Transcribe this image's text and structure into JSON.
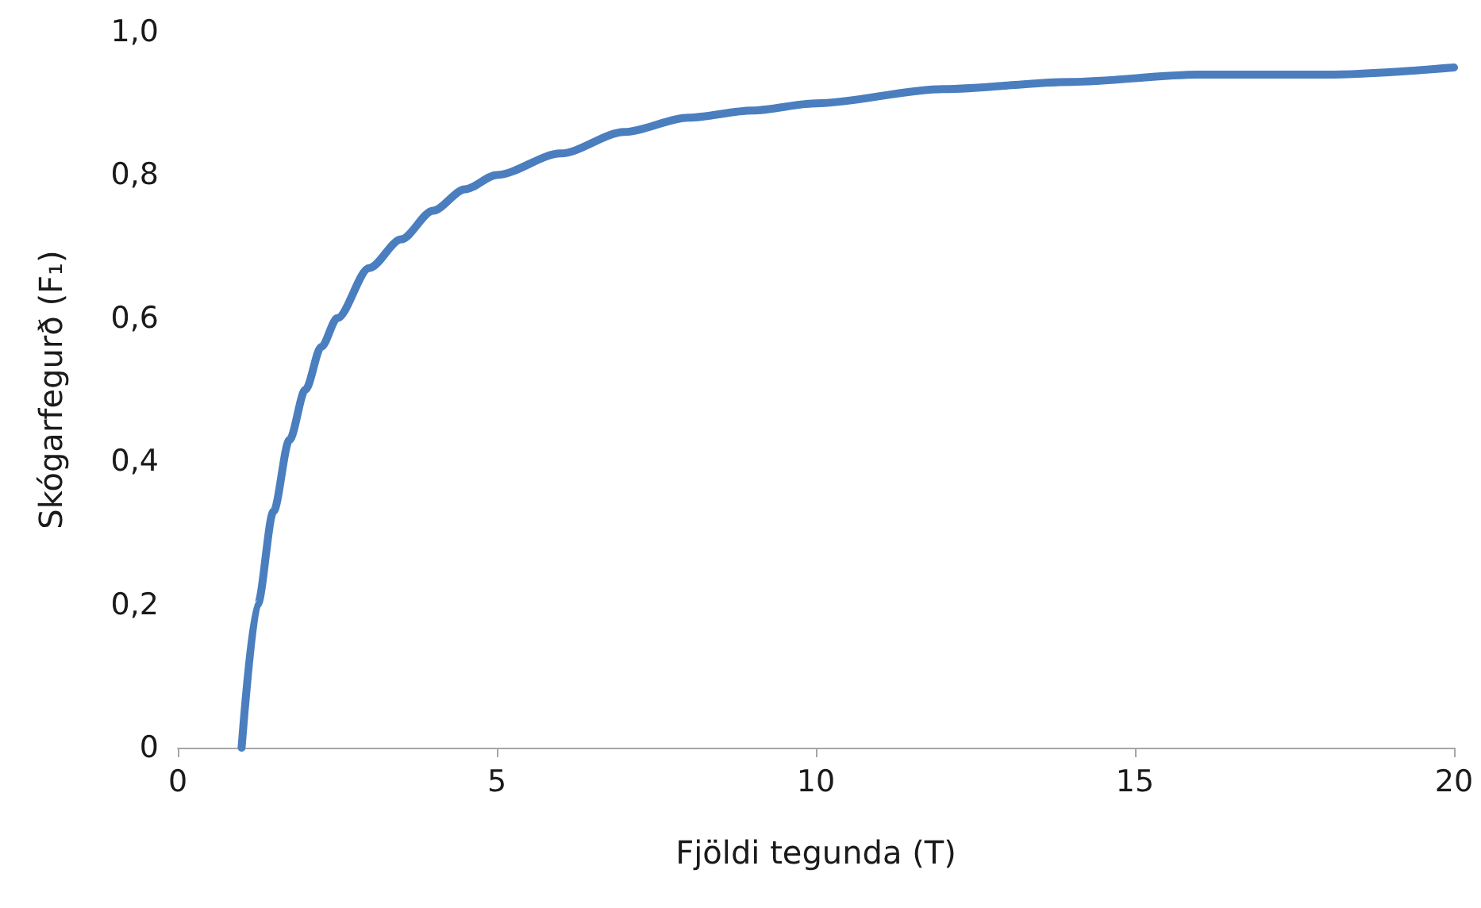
{
  "chart_data": {
    "type": "line",
    "xlabel": "Fjöldi tegunda (T)",
    "ylabel": "Skógarfegurð (F₁)",
    "x": [
      1,
      1.25,
      1.5,
      1.75,
      2,
      2.25,
      2.5,
      3,
      3.5,
      4,
      4.5,
      5,
      6,
      7,
      8,
      9,
      10,
      12,
      14,
      16,
      18,
      20
    ],
    "series": [
      {
        "color": "#4a7ebf",
        "values": [
          0,
          0.2,
          0.33,
          0.43,
          0.5,
          0.56,
          0.6,
          0.67,
          0.71,
          0.75,
          0.78,
          0.8,
          0.83,
          0.86,
          0.88,
          0.89,
          0.9,
          0.92,
          0.93,
          0.94,
          0.94,
          0.95
        ]
      }
    ],
    "xlim": [
      0,
      20
    ],
    "xticks": [
      0,
      5,
      10,
      15,
      20
    ],
    "ylim": [
      0,
      1
    ],
    "yticks": [
      0,
      {
        "value": 0.2,
        "label": "0,2"
      },
      {
        "value": 0.4,
        "label": "0,4"
      },
      {
        "value": 0.6,
        "label": "0,6"
      },
      {
        "value": 0.8,
        "label": "0,8"
      },
      {
        "value": 1,
        "label": "1,0"
      }
    ],
    "grid": false,
    "marker": "none",
    "line_style": "solid"
  }
}
